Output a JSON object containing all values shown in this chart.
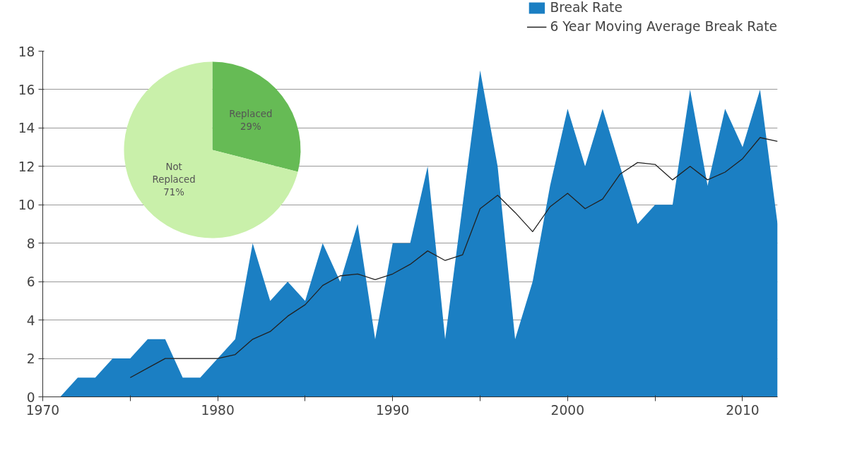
{
  "chart_data": [
    {
      "type": "area",
      "x": [
        1971,
        1972,
        1973,
        1974,
        1975,
        1976,
        1977,
        1978,
        1979,
        1980,
        1981,
        1982,
        1983,
        1984,
        1985,
        1986,
        1987,
        1988,
        1989,
        1990,
        1991,
        1992,
        1993,
        1994,
        1995,
        1996,
        1997,
        1998,
        1999,
        2000,
        2001,
        2002,
        2003,
        2004,
        2005,
        2006,
        2007,
        2008,
        2009,
        2010,
        2011,
        2012
      ],
      "series": [
        {
          "name": "Break Rate",
          "type": "area",
          "color": "#1b7fc3",
          "values": [
            0,
            1,
            1,
            2,
            2,
            3,
            3,
            1,
            1,
            2,
            3,
            8,
            5,
            6,
            5,
            8,
            6,
            9,
            3,
            8,
            8,
            12,
            3,
            10,
            17,
            12,
            3,
            6,
            11,
            15,
            12,
            15,
            12,
            9,
            10,
            10,
            16,
            11,
            15,
            13,
            16,
            9
          ]
        },
        {
          "name": "6 Year Moving Average Break Rate",
          "type": "line",
          "color": "#222222",
          "x": [
            1975,
            1976,
            1977,
            1978,
            1979,
            1980,
            1981,
            1982,
            1983,
            1984,
            1985,
            1986,
            1987,
            1988,
            1989,
            1990,
            1991,
            1992,
            1993,
            1994,
            1995,
            1996,
            1997,
            1998,
            1999,
            2000,
            2001,
            2002,
            2003,
            2004,
            2005,
            2006,
            2007,
            2008,
            2009,
            2010,
            2011,
            2012
          ],
          "values": [
            1,
            1.5,
            2,
            2,
            2,
            2,
            2.2,
            3,
            3.4,
            4.2,
            4.8,
            5.8,
            6.3,
            6.4,
            6.1,
            6.4,
            6.9,
            7.6,
            7.1,
            7.4,
            9.8,
            10.5,
            9.6,
            8.6,
            9.9,
            10.6,
            9.8,
            10.3,
            11.6,
            12.2,
            12.1,
            11.3,
            12,
            11.3,
            11.7,
            12.4,
            13.5,
            13.3
          ]
        }
      ],
      "xlim": [
        1970,
        2012
      ],
      "xticks": [
        1970,
        {
          "value": 1975,
          "label": null
        },
        1980,
        {
          "value": 1985,
          "label": null
        },
        1990,
        {
          "value": 1995,
          "label": null
        },
        2000,
        {
          "value": 2005,
          "label": null
        },
        2010
      ],
      "ylim": [
        0,
        18
      ],
      "yticks": [
        0,
        2,
        4,
        6,
        8,
        10,
        12,
        14,
        16,
        18
      ],
      "grid": "y",
      "legend": "top right",
      "marker": "none",
      "line_style": "solid"
    },
    {
      "type": "pie",
      "categories": [
        "Replaced",
        "Not Replaced"
      ],
      "values": [
        29,
        71
      ],
      "colors": [
        "#66bb55",
        "#c9f0aa"
      ],
      "value_labels": [
        "29%",
        "71%"
      ]
    }
  ]
}
